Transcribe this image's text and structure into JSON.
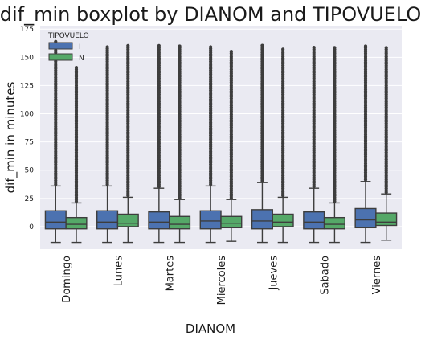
{
  "chart_data": {
    "type": "boxplot",
    "title": "dif_min boxplot by DIANOM and TIPOVUELO",
    "xlabel": "DIANOM",
    "ylabel": "dif_min in minutes",
    "ylim": [
      -20,
      178
    ],
    "yticks": [
      0,
      25,
      50,
      75,
      100,
      125,
      150,
      175
    ],
    "categories": [
      "Domingo",
      "Lunes",
      "Martes",
      "Miercoles",
      "Jueves",
      "Sabado",
      "Viernes"
    ],
    "grid": true,
    "legend": {
      "title": "TIPOVUELO",
      "position": "top-left"
    },
    "series": [
      {
        "name": "I",
        "color": "#4c72b0",
        "boxes": [
          {
            "whislo": -14,
            "q1": -2,
            "med": 4,
            "q3": 14,
            "whishi": 36,
            "fliermax": 165
          },
          {
            "whislo": -14,
            "q1": -2,
            "med": 4,
            "q3": 14,
            "whishi": 36,
            "fliermax": 160
          },
          {
            "whislo": -14,
            "q1": -2,
            "med": 4,
            "q3": 13,
            "whishi": 34,
            "fliermax": 161
          },
          {
            "whislo": -14,
            "q1": -2,
            "med": 5,
            "q3": 14,
            "whishi": 36,
            "fliermax": 160
          },
          {
            "whislo": -14,
            "q1": -2,
            "med": 5,
            "q3": 15,
            "whishi": 39,
            "fliermax": 161
          },
          {
            "whislo": -14,
            "q1": -2,
            "med": 4,
            "q3": 13,
            "whishi": 34,
            "fliermax": 160
          },
          {
            "whislo": -14,
            "q1": -1,
            "med": 6,
            "q3": 16,
            "whishi": 40,
            "fliermax": 160
          }
        ]
      },
      {
        "name": "N",
        "color": "#55a868",
        "boxes": [
          {
            "whislo": -14,
            "q1": -2,
            "med": 2,
            "q3": 8,
            "whishi": 21,
            "fliermax": 142
          },
          {
            "whislo": -14,
            "q1": 0,
            "med": 3,
            "q3": 11,
            "whishi": 26,
            "fliermax": 161
          },
          {
            "whislo": -14,
            "q1": -2,
            "med": 2,
            "q3": 9,
            "whishi": 24,
            "fliermax": 161
          },
          {
            "whislo": -13,
            "q1": -1,
            "med": 3,
            "q3": 9,
            "whishi": 24,
            "fliermax": 156
          },
          {
            "whislo": -14,
            "q1": 0,
            "med": 4,
            "q3": 11,
            "whishi": 26,
            "fliermax": 158
          },
          {
            "whislo": -14,
            "q1": -2,
            "med": 2,
            "q3": 8,
            "whishi": 21,
            "fliermax": 159
          },
          {
            "whislo": -12,
            "q1": 1,
            "med": 4,
            "q3": 12,
            "whishi": 29,
            "fliermax": 160
          }
        ]
      }
    ]
  }
}
